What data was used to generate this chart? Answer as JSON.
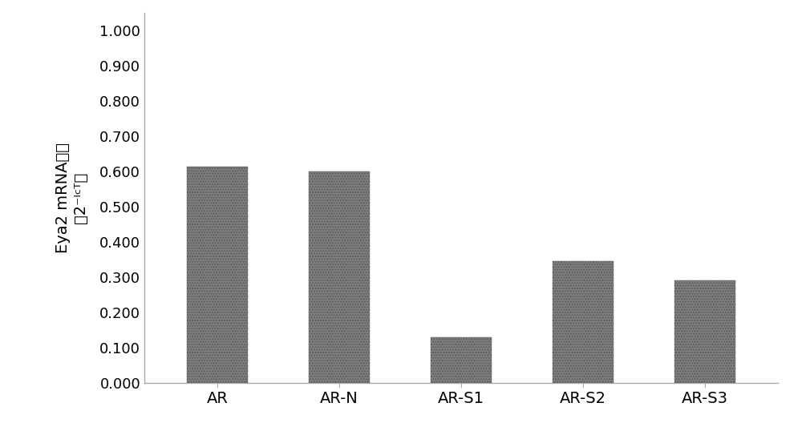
{
  "categories": [
    "AR",
    "AR-N",
    "AR-S1",
    "AR-S2",
    "AR-S3"
  ],
  "values": [
    0.615,
    0.6,
    0.13,
    0.345,
    0.29
  ],
  "bar_color": "#7f7f7f",
  "bar_hatch": ".....",
  "ylabel_line1": "Eya2 mRNA表达",
  "ylabel_line2": "（2⁻ᴵᶜᵀ）",
  "ylim": [
    0.0,
    1.05
  ],
  "yticks": [
    0.0,
    0.1,
    0.2,
    0.3,
    0.4,
    0.5,
    0.6,
    0.7,
    0.8,
    0.9,
    1.0
  ],
  "ytick_labels": [
    "0.000",
    "0.100",
    "0.200",
    "0.300",
    "0.400",
    "0.500",
    "0.600",
    "0.700",
    "0.800",
    "0.900",
    "1.000"
  ],
  "background_color": "#ffffff",
  "bar_width": 0.5,
  "bar_edge_color": "#5a5a5a",
  "ylabel_fontsize": 14,
  "tick_fontsize": 13,
  "xtick_fontsize": 14,
  "spine_color": "#aaaaaa",
  "hatch_color": "#555555"
}
